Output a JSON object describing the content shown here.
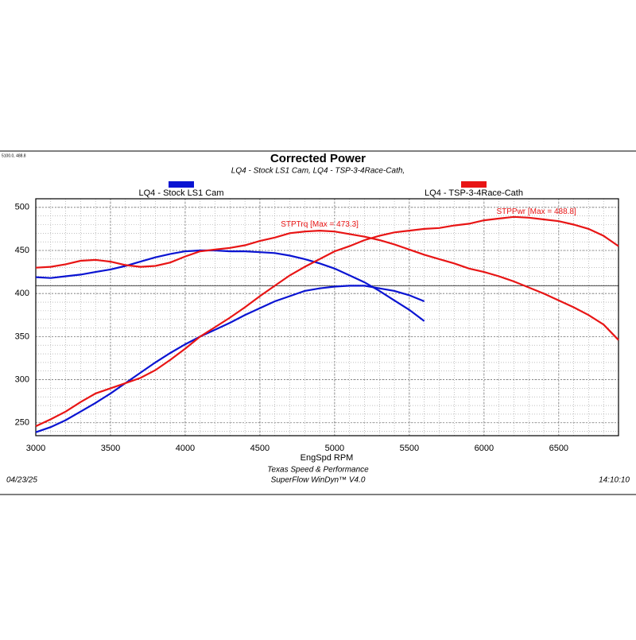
{
  "chart_data": {
    "type": "line",
    "title": "Corrected Power",
    "subtitle": "LQ4 - Stock LS1 Cam, LQ4 - TSP-3-4Race-Cath,",
    "cursor_readout": "5100.0, 488.8",
    "x_label": "EngSpd RPM",
    "footer_date": "04/23/25",
    "footer_company": "Texas Speed & Performance",
    "footer_software": "SuperFlow WinDyn™ V4.0",
    "footer_time": "14:10:10",
    "xlim": [
      3000,
      6900
    ],
    "ylim": [
      235,
      510
    ],
    "xticks": [
      3000,
      3500,
      4000,
      4500,
      5000,
      5500,
      6000,
      6500
    ],
    "yticks": [
      250,
      300,
      350,
      400,
      450,
      500
    ],
    "grid": true,
    "minor_grid": true,
    "reference_line": 409,
    "runs": [
      {
        "name": "LQ4 - Stock LS1 Cam",
        "color": "#0a14d2",
        "x": [
          3000,
          3100,
          3200,
          3300,
          3400,
          3500,
          3600,
          3700,
          3800,
          3900,
          4000,
          4100,
          4200,
          4300,
          4400,
          4500,
          4600,
          4700,
          4800,
          4900,
          5000,
          5100,
          5200,
          5300,
          5400,
          5500,
          5600
        ],
        "torque": [
          419,
          418,
          420,
          422,
          425,
          428,
          432,
          437,
          442,
          446,
          449,
          450,
          450,
          449,
          449,
          448,
          447,
          444,
          440,
          435,
          429,
          421,
          413,
          403,
          392,
          381,
          368
        ],
        "power": [
          239,
          245,
          253,
          263,
          273,
          284,
          296,
          308,
          320,
          331,
          341,
          350,
          358,
          366,
          375,
          383,
          391,
          397,
          403,
          406,
          408,
          409,
          409,
          406,
          403,
          398,
          391
        ]
      },
      {
        "name": "LQ4 - TSP-3-4Race-Cath",
        "color": "#e81515",
        "x": [
          3000,
          3100,
          3200,
          3300,
          3400,
          3500,
          3600,
          3700,
          3800,
          3900,
          4000,
          4100,
          4200,
          4300,
          4400,
          4500,
          4600,
          4700,
          4800,
          4900,
          5000,
          5100,
          5200,
          5300,
          5400,
          5500,
          5600,
          5700,
          5800,
          5900,
          6000,
          6100,
          6200,
          6300,
          6400,
          6500,
          6600,
          6700,
          6800,
          6900
        ],
        "torque": [
          430,
          431,
          434,
          438,
          439,
          437,
          433,
          431,
          432,
          436,
          443,
          449,
          451,
          453,
          456,
          461,
          465,
          470,
          472,
          473,
          472,
          469,
          466,
          462,
          457,
          451,
          445,
          440,
          435,
          429,
          425,
          420,
          414,
          407,
          400,
          392,
          384,
          375,
          364,
          346
        ],
        "power": [
          246,
          254,
          263,
          274,
          284,
          290,
          296,
          302,
          311,
          323,
          336,
          350,
          361,
          372,
          384,
          397,
          409,
          421,
          431,
          440,
          449,
          455,
          462,
          467,
          471,
          473,
          475,
          476,
          479,
          481,
          485,
          487,
          489,
          488,
          486,
          484,
          480,
          475,
          467,
          455
        ]
      }
    ],
    "annotations": [
      {
        "text": "STPTrq [Max = 473.3]",
        "x": 4900,
        "y": 480
      },
      {
        "text": "STPPwr [Max = 488.8]",
        "x": 6350,
        "y": 495
      }
    ]
  }
}
